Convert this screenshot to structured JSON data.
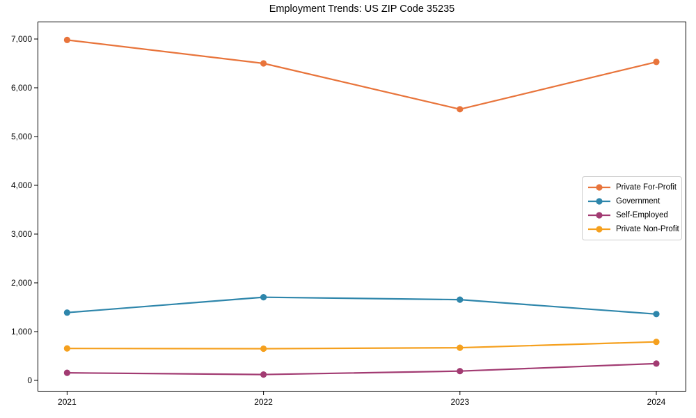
{
  "chart_data": {
    "type": "line",
    "title": "Employment Trends: US ZIP Code 35235",
    "x": [
      2021,
      2022,
      2023,
      2024
    ],
    "xtick_labels": [
      "2021",
      "2022",
      "2023",
      "2024"
    ],
    "yticks": [
      0,
      1000,
      2000,
      3000,
      4000,
      5000,
      6000,
      7000
    ],
    "ytick_labels": [
      "0",
      "1,000",
      "2,000",
      "3,000",
      "4,000",
      "5,000",
      "6,000",
      "7,000"
    ],
    "ylim": [
      -230,
      7380
    ],
    "grid": false,
    "legend_position": "center-right",
    "series": [
      {
        "name": "Private For-Profit",
        "color": "#E8743B",
        "values": [
          6980,
          6500,
          5560,
          6530
        ]
      },
      {
        "name": "Government",
        "color": "#2E86AB",
        "values": [
          1390,
          1705,
          1655,
          1360
        ]
      },
      {
        "name": "Self-Employed",
        "color": "#A23B72",
        "values": [
          155,
          120,
          190,
          345
        ]
      },
      {
        "name": "Private Non-Profit",
        "color": "#F5A01E",
        "values": [
          655,
          650,
          670,
          790
        ]
      }
    ]
  }
}
